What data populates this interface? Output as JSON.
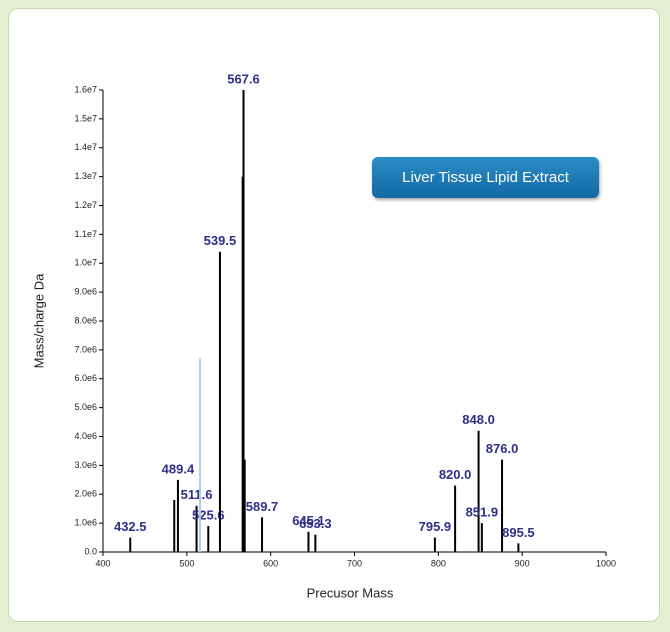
{
  "chart_data": {
    "type": "stem",
    "annotation": "Liver Tissue Lipid Extract",
    "x_label": "Precusor Mass",
    "y_label": "Mass/charge Da",
    "xlim": [
      400,
      1000
    ],
    "xticks": [
      400,
      500,
      600,
      700,
      800,
      900,
      1000
    ],
    "ylim": [
      0,
      16000000
    ],
    "yticks": [
      {
        "value": 0,
        "label": "0.0"
      },
      {
        "value": 1000000,
        "label": "1.0e6"
      },
      {
        "value": 2000000,
        "label": "2.0e6"
      },
      {
        "value": 3000000,
        "label": "3.0e6"
      },
      {
        "value": 4000000,
        "label": "4.0e6"
      },
      {
        "value": 5000000,
        "label": "5.0e6"
      },
      {
        "value": 6000000,
        "label": "6.0e6"
      },
      {
        "value": 7000000,
        "label": "7.0e6"
      },
      {
        "value": 8000000,
        "label": "8.0e6"
      },
      {
        "value": 9000000,
        "label": "9.0e6"
      },
      {
        "value": 10000000,
        "label": "1.0e7"
      },
      {
        "value": 11000000,
        "label": "1.1e7"
      },
      {
        "value": 12000000,
        "label": "1.2e7"
      },
      {
        "value": 13000000,
        "label": "1.3e7"
      },
      {
        "value": 14000000,
        "label": "1.4e7"
      },
      {
        "value": 15000000,
        "label": "1.5e7"
      },
      {
        "value": 16000000,
        "label": "1.6e7"
      }
    ],
    "series": [
      {
        "color": "#000000",
        "x": [
          432.5,
          485.0,
          489.4,
          511.6,
          525.6,
          539.5,
          566.6,
          567.6,
          569.0,
          589.7,
          645.1,
          653.3,
          795.9,
          820.0,
          848.0,
          851.9,
          876.0,
          895.5
        ],
        "values": [
          500000,
          1800000,
          2500000,
          1600000,
          900000,
          10400000,
          13000000,
          16000000,
          3200000,
          1200000,
          700000,
          600000,
          500000,
          2300000,
          4200000,
          1000000,
          3200000,
          300000
        ],
        "labels": [
          "432.5",
          null,
          "489.4",
          "511.6",
          "525.6",
          "539.5",
          null,
          "567.6",
          null,
          "589.7",
          "645.1",
          "653.3",
          "795.9",
          "820.0",
          "848.0",
          "851.9",
          "876.0",
          "895.5"
        ]
      },
      {
        "color": "#a9cfe6",
        "x": [
          515.7
        ],
        "values": [
          6700000
        ],
        "labels": [
          null
        ]
      }
    ]
  }
}
